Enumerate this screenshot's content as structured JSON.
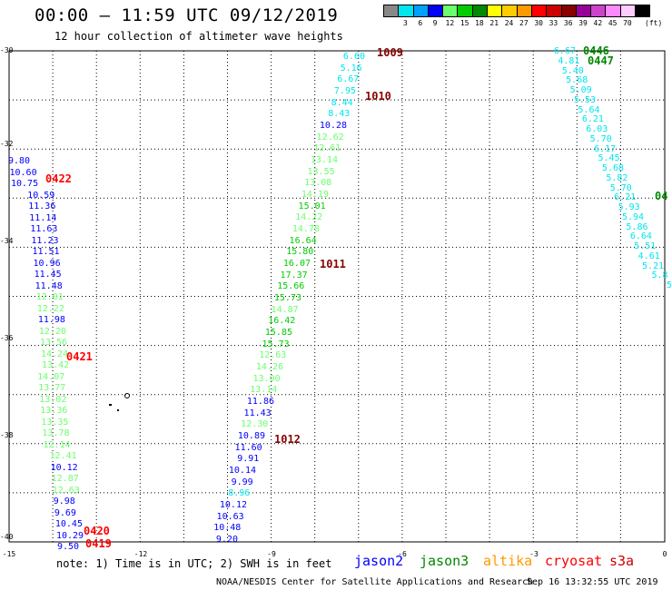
{
  "header": {
    "title": "00:00 – 11:59 UTC 09/12/2019",
    "subtitle": "12 hour collection of altimeter wave heights"
  },
  "scale": {
    "unit": "(ft)",
    "bins": [
      {
        "color": "#888888",
        "label": ""
      },
      {
        "color": "#00e5ee",
        "label": "3"
      },
      {
        "color": "#00a0ff",
        "label": "6"
      },
      {
        "color": "#0000ff",
        "label": "9"
      },
      {
        "color": "#6cff6c",
        "label": "12"
      },
      {
        "color": "#00cc00",
        "label": "15"
      },
      {
        "color": "#008800",
        "label": "18"
      },
      {
        "color": "#ffff00",
        "label": "21"
      },
      {
        "color": "#ffcc00",
        "label": "24"
      },
      {
        "color": "#ff9900",
        "label": "27"
      },
      {
        "color": "#ff0000",
        "label": "30"
      },
      {
        "color": "#cc0000",
        "label": "33"
      },
      {
        "color": "#880000",
        "label": "36"
      },
      {
        "color": "#990099",
        "label": "39"
      },
      {
        "color": "#cc44cc",
        "label": "42"
      },
      {
        "color": "#ff88ff",
        "label": "45"
      },
      {
        "color": "#ffccff",
        "label": "70"
      },
      {
        "color": "#000000",
        "label": ""
      }
    ]
  },
  "axes": {
    "lat_labels": [
      "-30",
      "-32",
      "-34",
      "-36",
      "-38",
      "-40"
    ],
    "lon_labels": [
      "-15",
      "-12",
      "-9",
      "-6",
      "-3",
      "0"
    ]
  },
  "tracks": [
    {
      "id": "track-west",
      "values": [
        [
          "9.80",
          "#0000ff"
        ],
        [
          "10.60",
          "#0000ff"
        ],
        [
          "10.75",
          "#0000ff"
        ],
        [
          "10.59",
          "#0000ff"
        ],
        [
          "11.36",
          "#0000ff"
        ],
        [
          "11.14",
          "#0000ff"
        ],
        [
          "11.63",
          "#0000ff"
        ],
        [
          "11.23",
          "#0000ff"
        ],
        [
          "11.51",
          "#0000ff"
        ],
        [
          "10.96",
          "#0000ff"
        ],
        [
          "11.45",
          "#0000ff"
        ],
        [
          "11.48",
          "#0000ff"
        ],
        [
          "12.01",
          "#6cff6c"
        ],
        [
          "12.22",
          "#6cff6c"
        ],
        [
          "11.98",
          "#0000ff"
        ],
        [
          "12.20",
          "#6cff6c"
        ],
        [
          "13.56",
          "#6cff6c"
        ],
        [
          "14.24",
          "#6cff6c"
        ],
        [
          "13.42",
          "#6cff6c"
        ],
        [
          "14.07",
          "#6cff6c"
        ],
        [
          "13.77",
          "#6cff6c"
        ],
        [
          "13.02",
          "#6cff6c"
        ],
        [
          "13.36",
          "#6cff6c"
        ],
        [
          "13.35",
          "#6cff6c"
        ],
        [
          "13.78",
          "#6cff6c"
        ],
        [
          "12.14",
          "#6cff6c"
        ],
        [
          "12.41",
          "#6cff6c"
        ],
        [
          "10.12",
          "#0000ff"
        ],
        [
          "12.87",
          "#6cff6c"
        ],
        [
          "12.63",
          "#6cff6c"
        ],
        [
          "9.98",
          "#0000ff"
        ],
        [
          "9.69",
          "#0000ff"
        ],
        [
          "10.45",
          "#0000ff"
        ],
        [
          "10.29",
          "#0000ff"
        ],
        [
          "9.50",
          "#0000ff"
        ]
      ]
    },
    {
      "id": "track-central",
      "values": [
        [
          "6.60",
          "#00e5ee"
        ],
        [
          "5.16",
          "#00e5ee"
        ],
        [
          "6.67",
          "#00e5ee"
        ],
        [
          "7.95",
          "#00e5ee"
        ],
        [
          "8.44",
          "#00e5ee"
        ],
        [
          "8.43",
          "#00e5ee"
        ],
        [
          "10.28",
          "#0000ff"
        ],
        [
          "12.62",
          "#6cff6c"
        ],
        [
          "12.61",
          "#6cff6c"
        ],
        [
          "13.14",
          "#6cff6c"
        ],
        [
          "13.55",
          "#6cff6c"
        ],
        [
          "13.08",
          "#6cff6c"
        ],
        [
          "14.19",
          "#6cff6c"
        ],
        [
          "15.01",
          "#00cc00"
        ],
        [
          "14.22",
          "#6cff6c"
        ],
        [
          "14.78",
          "#6cff6c"
        ],
        [
          "16.64",
          "#00cc00"
        ],
        [
          "15.80",
          "#00cc00"
        ],
        [
          "16.07",
          "#00cc00"
        ],
        [
          "17.37",
          "#00cc00"
        ],
        [
          "15.66",
          "#00cc00"
        ],
        [
          "15.73",
          "#00cc00"
        ],
        [
          "14.87",
          "#6cff6c"
        ],
        [
          "16.42",
          "#00cc00"
        ],
        [
          "15.85",
          "#00cc00"
        ],
        [
          "15.73",
          "#00cc00"
        ],
        [
          "12.63",
          "#6cff6c"
        ],
        [
          "14.26",
          "#6cff6c"
        ],
        [
          "13.00",
          "#6cff6c"
        ],
        [
          "13.14",
          "#6cff6c"
        ],
        [
          "11.86",
          "#0000ff"
        ],
        [
          "11.43",
          "#0000ff"
        ],
        [
          "12.30",
          "#6cff6c"
        ],
        [
          "10.89",
          "#0000ff"
        ],
        [
          "11.60",
          "#0000ff"
        ],
        [
          "9.91",
          "#0000ff"
        ],
        [
          "10.14",
          "#0000ff"
        ],
        [
          "9.99",
          "#0000ff"
        ],
        [
          "8.96",
          "#00e5ee"
        ],
        [
          "10.12",
          "#0000ff"
        ],
        [
          "10.63",
          "#0000ff"
        ],
        [
          "10.48",
          "#0000ff"
        ],
        [
          "9.20",
          "#0000ff"
        ]
      ]
    },
    {
      "id": "track-east",
      "values": [
        [
          "6.67",
          "#00e5ee"
        ],
        [
          "4.81",
          "#00e5ee"
        ],
        [
          "5.40",
          "#00e5ee"
        ],
        [
          "5.68",
          "#00e5ee"
        ],
        [
          "5.09",
          "#00e5ee"
        ],
        [
          "5.53",
          "#00e5ee"
        ],
        [
          "5.64",
          "#00e5ee"
        ],
        [
          "6.21",
          "#00e5ee"
        ],
        [
          "6.03",
          "#00e5ee"
        ],
        [
          "5.70",
          "#00e5ee"
        ],
        [
          "6.17",
          "#00e5ee"
        ],
        [
          "5.45",
          "#00e5ee"
        ],
        [
          "5.68",
          "#00e5ee"
        ],
        [
          "5.82",
          "#00e5ee"
        ],
        [
          "5.70",
          "#00e5ee"
        ],
        [
          "6.21",
          "#00e5ee"
        ],
        [
          "5.93",
          "#00e5ee"
        ],
        [
          "5.94",
          "#00e5ee"
        ],
        [
          "5.86",
          "#00e5ee"
        ],
        [
          "6.64",
          "#00e5ee"
        ],
        [
          "5.51",
          "#00e5ee"
        ],
        [
          "4.61",
          "#00e5ee"
        ],
        [
          "5.21",
          "#00e5ee"
        ],
        [
          "5.8",
          "#00e5ee"
        ],
        [
          "5",
          "#00e5ee"
        ]
      ]
    }
  ],
  "time_stamps": [
    {
      "text": "1009",
      "color": "#880000"
    },
    {
      "text": "1010",
      "color": "#880000"
    },
    {
      "text": "1011",
      "color": "#880000"
    },
    {
      "text": "1012",
      "color": "#880000"
    },
    {
      "text": "0422",
      "color": "#ff0000"
    },
    {
      "text": "0421",
      "color": "#ff0000"
    },
    {
      "text": "0420",
      "color": "#ff0000"
    },
    {
      "text": "0419",
      "color": "#ff0000"
    },
    {
      "text": "0446",
      "color": "#008800"
    },
    {
      "text": "0447",
      "color": "#008800"
    },
    {
      "text": "04",
      "color": "#008800"
    }
  ],
  "footer": {
    "note": "note: 1) Time is in UTC; 2) SWH is in feet",
    "satellites": [
      {
        "name": "jason2",
        "color": "#0000ff"
      },
      {
        "name": "jason3",
        "color": "#008800"
      },
      {
        "name": "altika",
        "color": "#ff9900"
      },
      {
        "name": "cryosat",
        "color": "#ff0000"
      },
      {
        "name": "s3a",
        "color": "#cc0000"
      }
    ],
    "credit": "NOAA/NESDIS Center for Satellite Applications and Research",
    "timestamp": "Sep 16 13:32:55 UTC 2019"
  }
}
